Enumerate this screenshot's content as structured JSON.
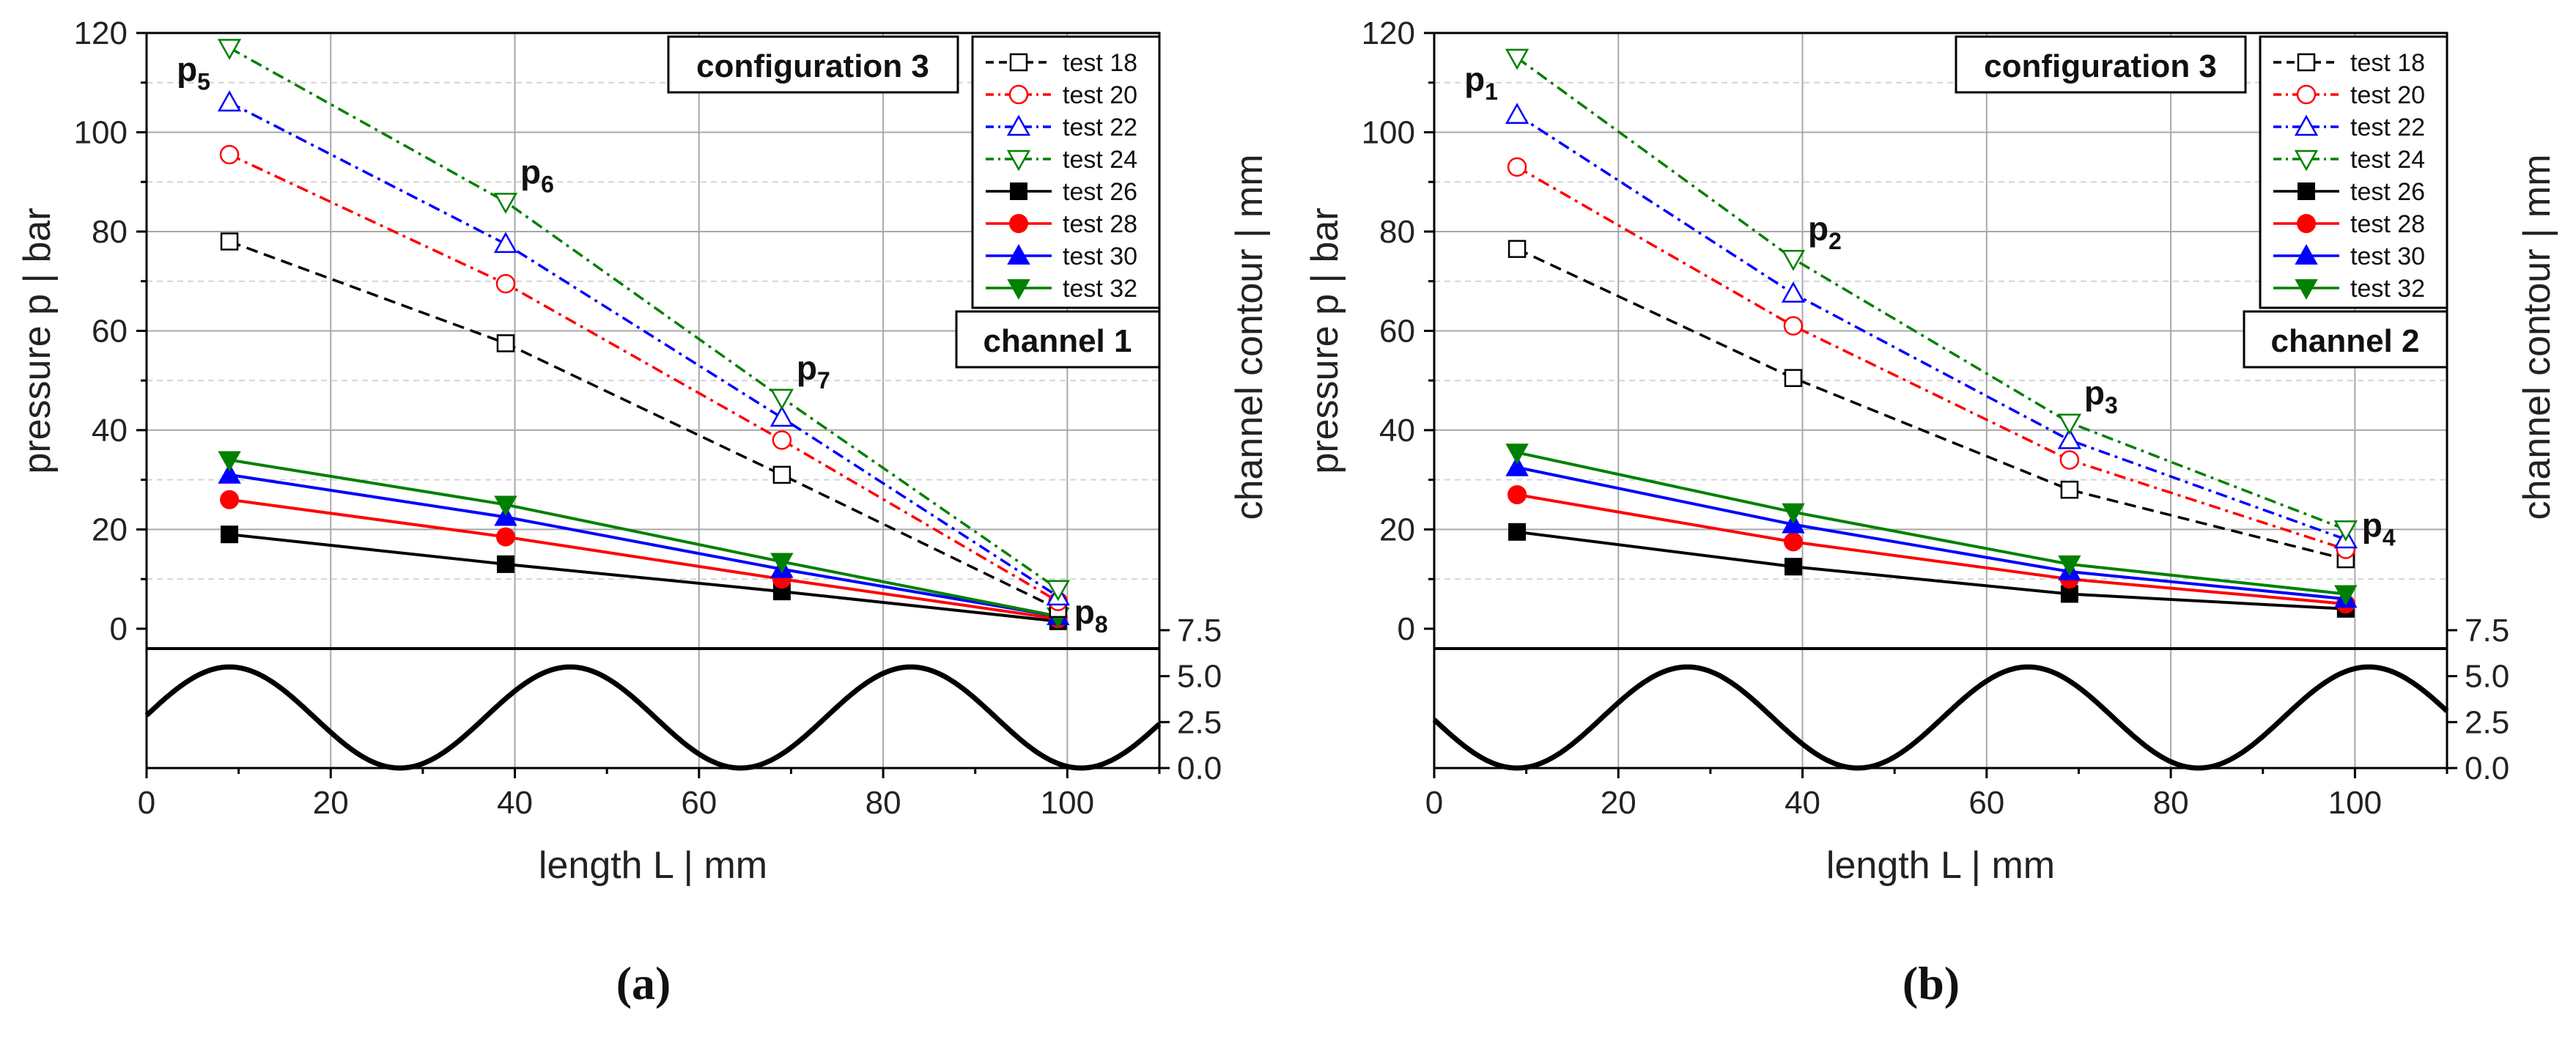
{
  "chart_data": [
    {
      "type": "line",
      "caption": "(a)",
      "xlabel": "length L  |  mm",
      "ylabel": "pressure p  |  bar",
      "ylabel_right": "channel contour  |  mm",
      "xlim": [
        0,
        110
      ],
      "ylim": [
        -4,
        120
      ],
      "contour_ylim": [
        0,
        6.5
      ],
      "x_ticks": [
        "0",
        "20",
        "40",
        "60",
        "80",
        "100"
      ],
      "y_ticks": [
        "0",
        "20",
        "40",
        "60",
        "80",
        "100",
        "120"
      ],
      "contour_ticks": [
        "0.0",
        "2.5",
        "5.0",
        "7.5"
      ],
      "configuration_label": "configuration 3",
      "channel_label": "channel 1",
      "x": [
        9,
        39,
        69,
        99
      ],
      "series": [
        {
          "name": "test 18",
          "color": "#000000",
          "marker": "square",
          "filled": false,
          "dash": "dash",
          "values": [
            78,
            57.5,
            31,
            4
          ]
        },
        {
          "name": "test 20",
          "color": "#ff0000",
          "marker": "circle",
          "filled": false,
          "dash": "dashdot",
          "values": [
            95.5,
            69.5,
            38,
            5.5
          ]
        },
        {
          "name": "test 22",
          "color": "#0000ff",
          "marker": "triangle-up",
          "filled": false,
          "dash": "dashdot",
          "values": [
            106,
            77.5,
            42.5,
            6.5
          ]
        },
        {
          "name": "test 24",
          "color": "#008000",
          "marker": "triangle-down",
          "filled": false,
          "dash": "dashdot",
          "values": [
            117,
            86,
            46.5,
            8
          ]
        },
        {
          "name": "test 26",
          "color": "#000000",
          "marker": "square",
          "filled": true,
          "dash": "solid",
          "values": [
            19,
            13,
            7.5,
            1.5
          ]
        },
        {
          "name": "test 28",
          "color": "#ff0000",
          "marker": "circle",
          "filled": true,
          "dash": "solid",
          "values": [
            26,
            18.5,
            10,
            2
          ]
        },
        {
          "name": "test 30",
          "color": "#0000ff",
          "marker": "triangle-up",
          "filled": true,
          "dash": "solid",
          "values": [
            31,
            22.5,
            12,
            2.5
          ]
        },
        {
          "name": "test 32",
          "color": "#008000",
          "marker": "triangle-down",
          "filled": true,
          "dash": "solid",
          "values": [
            34,
            25,
            13.5,
            2.5
          ]
        }
      ],
      "annotations": [
        {
          "base": "p",
          "sub": "5",
          "x": 9,
          "y": 117
        },
        {
          "base": "p",
          "sub": "6",
          "x": 39,
          "y": 86
        },
        {
          "base": "p",
          "sub": "7",
          "x": 69,
          "y": 46.5
        },
        {
          "base": "p",
          "sub": "8",
          "x": 99,
          "y": 2.5
        }
      ],
      "contour": {
        "amplitude": 2.75,
        "offset": 2.75,
        "period": 37,
        "max_at": 9,
        "x_range": [
          0,
          110
        ]
      }
    },
    {
      "type": "line",
      "caption": "(b)",
      "xlabel": "length L  |  mm",
      "ylabel": "pressure p  |  bar",
      "ylabel_right": "channel contour  |  mm",
      "xlim": [
        0,
        110
      ],
      "ylim": [
        -4,
        120
      ],
      "contour_ylim": [
        0,
        6.5
      ],
      "x_ticks": [
        "0",
        "20",
        "40",
        "60",
        "80",
        "100"
      ],
      "y_ticks": [
        "0",
        "20",
        "40",
        "60",
        "80",
        "100",
        "120"
      ],
      "contour_ticks": [
        "0.0",
        "2.5",
        "5.0",
        "7.5"
      ],
      "configuration_label": "configuration 3",
      "channel_label": "channel 2",
      "x": [
        9,
        39,
        69,
        99
      ],
      "series": [
        {
          "name": "test 18",
          "color": "#000000",
          "marker": "square",
          "filled": false,
          "dash": "dash",
          "values": [
            76.5,
            50.5,
            28,
            14
          ]
        },
        {
          "name": "test 20",
          "color": "#ff0000",
          "marker": "circle",
          "filled": false,
          "dash": "dashdot",
          "values": [
            93,
            61,
            34,
            16
          ]
        },
        {
          "name": "test 22",
          "color": "#0000ff",
          "marker": "triangle-up",
          "filled": false,
          "dash": "dashdot",
          "values": [
            103.5,
            67.5,
            38,
            18
          ]
        },
        {
          "name": "test 24",
          "color": "#008000",
          "marker": "triangle-down",
          "filled": false,
          "dash": "dashdot",
          "values": [
            115,
            74.5,
            41.5,
            20
          ]
        },
        {
          "name": "test 26",
          "color": "#000000",
          "marker": "square",
          "filled": true,
          "dash": "solid",
          "values": [
            19.5,
            12.5,
            7,
            4
          ]
        },
        {
          "name": "test 28",
          "color": "#ff0000",
          "marker": "circle",
          "filled": true,
          "dash": "solid",
          "values": [
            27,
            17.5,
            10,
            5
          ]
        },
        {
          "name": "test 30",
          "color": "#0000ff",
          "marker": "triangle-up",
          "filled": true,
          "dash": "solid",
          "values": [
            32.5,
            21,
            11.5,
            6
          ]
        },
        {
          "name": "test 32",
          "color": "#008000",
          "marker": "triangle-down",
          "filled": true,
          "dash": "solid",
          "values": [
            35.5,
            23.5,
            13,
            7
          ]
        }
      ],
      "annotations": [
        {
          "base": "p",
          "sub": "1",
          "x": 9,
          "y": 115
        },
        {
          "base": "p",
          "sub": "2",
          "x": 39,
          "y": 74.5
        },
        {
          "base": "p",
          "sub": "3",
          "x": 69,
          "y": 41.5
        },
        {
          "base": "p",
          "sub": "4",
          "x": 99,
          "y": 20
        }
      ],
      "contour": {
        "amplitude": 2.75,
        "offset": 2.75,
        "period": 37,
        "max_at": 27.5,
        "x_range": [
          0,
          110
        ]
      }
    }
  ]
}
